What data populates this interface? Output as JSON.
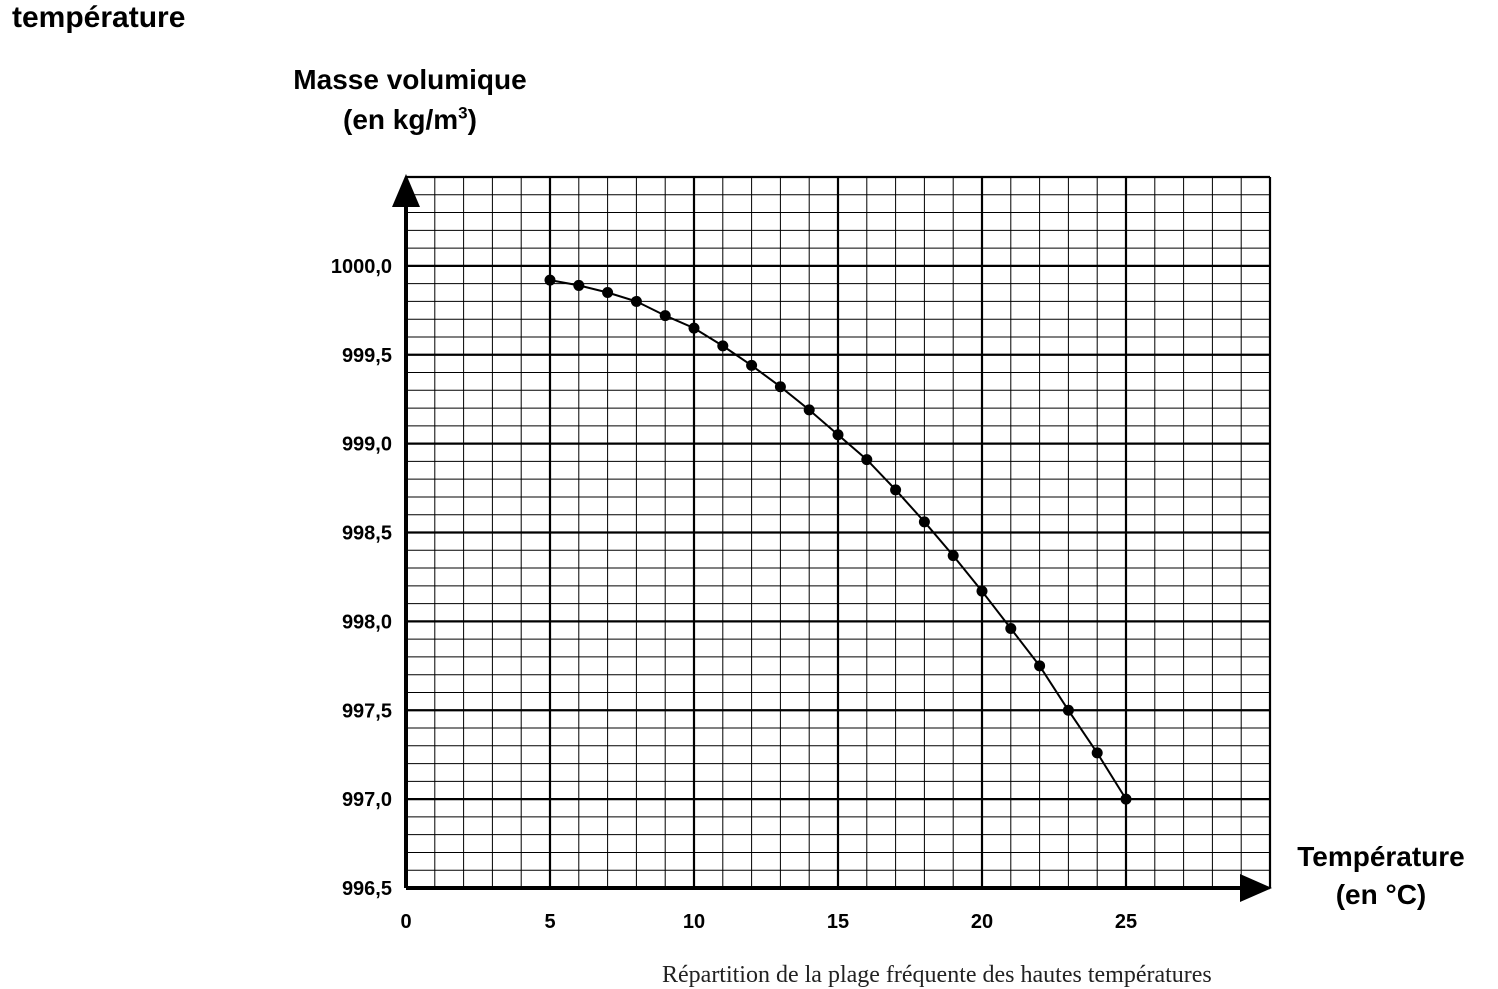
{
  "page": {
    "heading": "température",
    "caption": "Répartition de la plage fréquente des hautes températures"
  },
  "chart_data": {
    "type": "scatter",
    "title": "",
    "xlabel": "Température (en °C)",
    "ylabel": "Masse volumique (en kg/m³)",
    "ylabel_line1": "Masse volumique",
    "ylabel_line2_prefix": "(en kg/m",
    "ylabel_line2_sup": "3",
    "ylabel_line2_suffix": ")",
    "xlabel_line1": "Température",
    "xlabel_line2": "(en °C)",
    "xlim": [
      0,
      30
    ],
    "ylim": [
      996.5,
      1000.5
    ],
    "grid": true,
    "xticks": [
      0,
      5,
      10,
      15,
      20,
      25
    ],
    "xtick_labels": [
      "0",
      "5",
      "10",
      "15",
      "20",
      "25"
    ],
    "yticks": [
      996.5,
      997.0,
      997.5,
      998.0,
      998.5,
      999.0,
      999.5,
      1000.0
    ],
    "ytick_labels": [
      "996,5",
      "997,0",
      "997,5",
      "998,0",
      "998,5",
      "999,0",
      "999,5",
      "1000,0"
    ],
    "series": [
      {
        "x": [
          5,
          6,
          7,
          8,
          9,
          10,
          11,
          12,
          13,
          14,
          15,
          16,
          17,
          18,
          19,
          20,
          21,
          22,
          23,
          24,
          25
        ],
        "y": [
          999.92,
          999.89,
          999.85,
          999.8,
          999.72,
          999.65,
          999.55,
          999.44,
          999.32,
          999.19,
          999.05,
          998.91,
          998.74,
          998.56,
          998.37,
          998.17,
          997.96,
          997.75,
          997.5,
          997.26,
          997.0
        ],
        "color": "#000000"
      }
    ]
  }
}
